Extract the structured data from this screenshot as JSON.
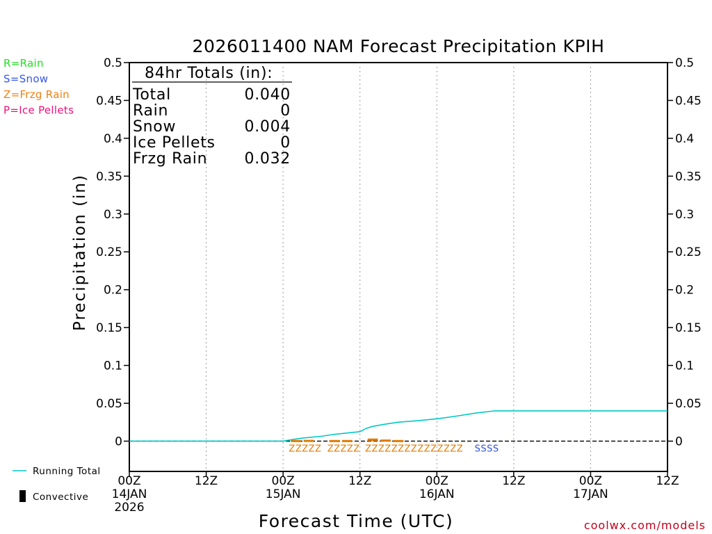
{
  "chart_data": {
    "type": "line",
    "title": "2026011400 NAM Forecast Precipitation KPIH",
    "ylabel": "Precipitation  (in)",
    "xlabel": "Forecast Time (UTC)",
    "ylim": [
      -0.04,
      0.5
    ],
    "xlim": [
      0,
      84
    ],
    "y_ticks": [
      0,
      0.05,
      0.1,
      0.15,
      0.2,
      0.25,
      0.3,
      0.35,
      0.4,
      0.45,
      0.5
    ],
    "y_tick_labels": [
      "0",
      "0.05",
      "0.1",
      "0.15",
      "0.2",
      "0.25",
      "0.3",
      "0.35",
      "0.4",
      "0.45",
      "0.5"
    ],
    "x_ticks": [
      {
        "hour": 0,
        "lines": [
          "00Z",
          "14JAN",
          "2026"
        ]
      },
      {
        "hour": 12,
        "lines": [
          "12Z"
        ]
      },
      {
        "hour": 24,
        "lines": [
          "00Z",
          "15JAN"
        ]
      },
      {
        "hour": 36,
        "lines": [
          "12Z"
        ]
      },
      {
        "hour": 48,
        "lines": [
          "00Z",
          "16JAN"
        ]
      },
      {
        "hour": 60,
        "lines": [
          "12Z"
        ]
      },
      {
        "hour": 72,
        "lines": [
          "00Z",
          "17JAN"
        ]
      },
      {
        "hour": 84,
        "lines": [
          "12Z"
        ]
      }
    ],
    "grid_hours": [
      12,
      24,
      36,
      48,
      60,
      72
    ],
    "series": [
      {
        "name": "Running Total",
        "color": "#00c8c8",
        "hours": [
          0,
          24,
          25,
          27,
          30,
          32,
          36,
          37,
          38,
          40,
          42,
          45,
          48,
          51,
          54,
          57,
          60,
          84
        ],
        "values": [
          0,
          0,
          0.0015,
          0.004,
          0.0065,
          0.009,
          0.0125,
          0.017,
          0.0195,
          0.0225,
          0.025,
          0.027,
          0.0295,
          0.033,
          0.037,
          0.04,
          0.04,
          0.04
        ]
      }
    ],
    "convective": {
      "name": "Convective",
      "color": "#000000",
      "bars": [
        {
          "hour": 26,
          "value": 0.0006
        },
        {
          "hour": 28,
          "value": 0.0008
        },
        {
          "hour": 32,
          "value": 0.0006
        },
        {
          "hour": 34,
          "value": 0.0006
        },
        {
          "hour": 38,
          "value": 0.0025
        },
        {
          "hour": 40,
          "value": 0.0012
        },
        {
          "hour": 42,
          "value": 0.0006
        }
      ]
    },
    "precip_type_row": [
      {
        "hour_start": 24.9,
        "text": "ZZZZZ",
        "color": "#e07a00"
      },
      {
        "hour_start": 30.9,
        "text": "ZZZZZ",
        "color": "#e07a00"
      },
      {
        "hour_start": 36.8,
        "text": "ZZZZZZZZZZZZZZZ",
        "color": "#e07a00"
      },
      {
        "hour_start": 53.9,
        "text": "SSSS",
        "color": "#3050e0"
      }
    ],
    "totals_box": {
      "heading": "84hr Totals (in):",
      "rows": [
        {
          "label": "Total",
          "value": "0.040"
        },
        {
          "label": "Rain",
          "value": "0"
        },
        {
          "label": "Snow",
          "value": "0.004"
        },
        {
          "label": "Ice Pellets",
          "value": "0"
        },
        {
          "label": "Frzg Rain",
          "value": "0.032"
        }
      ]
    },
    "ptype_legend": [
      {
        "text": "R=Rain",
        "color": "#22dd22"
      },
      {
        "text": "S=Snow",
        "color": "#3355ee"
      },
      {
        "text": "Z=Frzg Rain",
        "color": "#f08010"
      },
      {
        "text": "P=Ice Pellets",
        "color": "#ee1177"
      }
    ],
    "legend_running_total": "Running Total",
    "legend_convective": "Convective",
    "credit": "coolwx.com/models"
  }
}
